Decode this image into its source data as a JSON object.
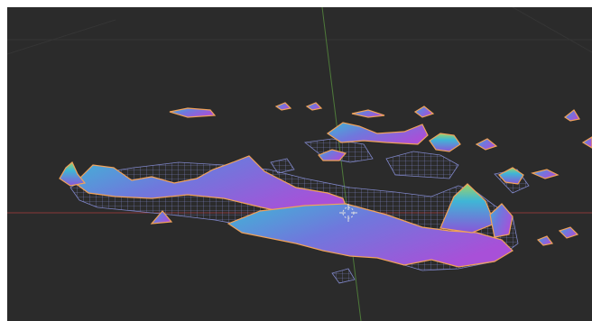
{
  "viewport": {
    "background_color": "#2b2b2b",
    "grid_line_color": "#353535",
    "x_axis_color": "#8a3a3a",
    "y_axis_color": "#4e7a3a",
    "mesh_outline_color": "#f0a25a",
    "wireframe_color": "#7f86c8",
    "surface_gradient": [
      "#3fb6d6",
      "#7a6ad8",
      "#a850d8"
    ],
    "cursor_icon": "3d-cursor-icon"
  }
}
